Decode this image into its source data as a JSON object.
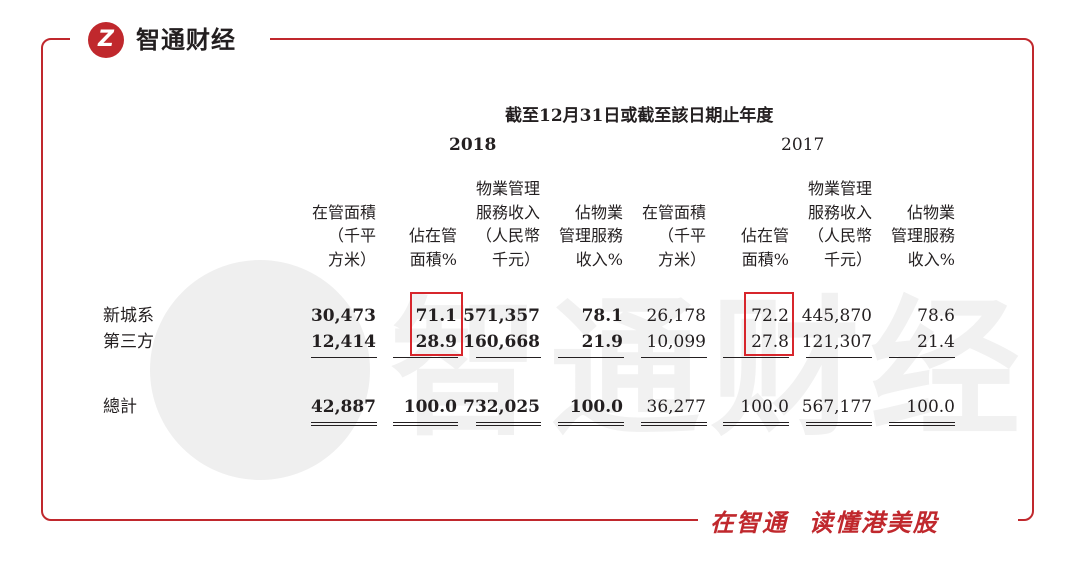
{
  "brand": {
    "logo_mark": "Z",
    "logo_text": "智通财经",
    "slogan": "在智通  读懂港美股",
    "accent_color": "#c0282d",
    "watermark_text": "智通财经"
  },
  "table": {
    "period_header": "截至12月31日或截至該日期止年度",
    "year_2018": "2018",
    "year_2017": "2017",
    "columns": [
      "在管面積\n（千平\n方米）",
      "佔在管\n面積%",
      "物業管理\n服務收入\n（人民幣\n千元）",
      "佔物業\n管理服務\n收入%",
      "在管面積\n（千平\n方米）",
      "佔在管\n面積%",
      "物業管理\n服務收入\n（人民幣\n千元）",
      "佔物業\n管理服務\n收入%"
    ],
    "rows": [
      {
        "label": "新城系",
        "values": [
          "30,473",
          "71.1",
          "571,357",
          "78.1",
          "26,178",
          "72.2",
          "445,870",
          "78.6"
        ]
      },
      {
        "label": "第三方",
        "values": [
          "12,414",
          "28.9",
          "160,668",
          "21.9",
          "10,099",
          "27.8",
          "121,307",
          "21.4"
        ]
      },
      {
        "label": "總計",
        "values": [
          "42,887",
          "100.0",
          "732,025",
          "100.0",
          "36,277",
          "100.0",
          "567,177",
          "100.0"
        ]
      }
    ]
  }
}
